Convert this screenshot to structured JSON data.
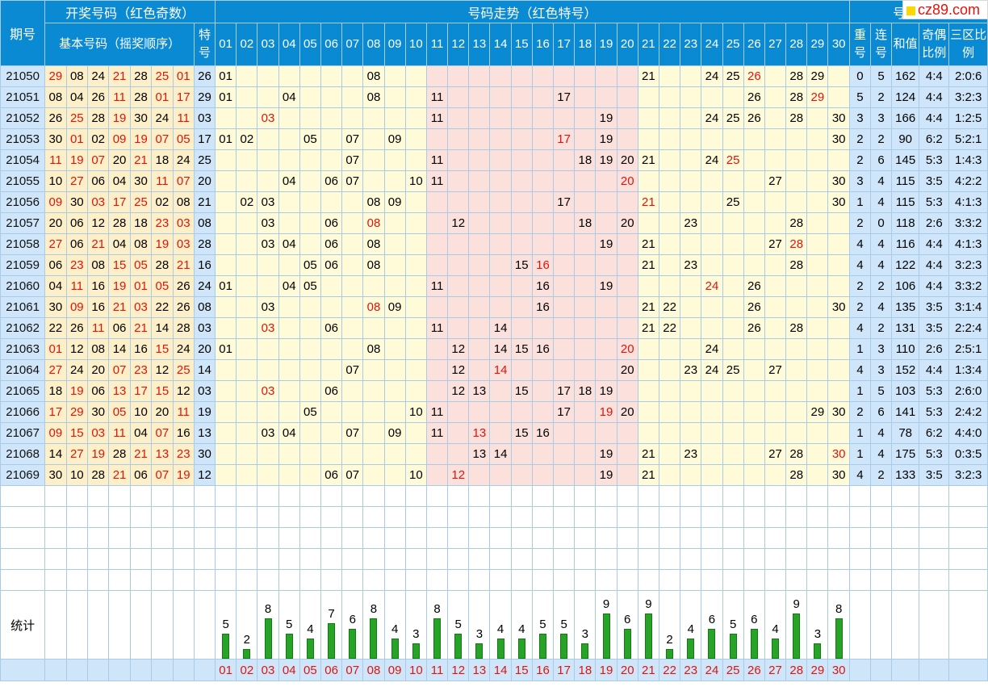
{
  "logo": "cz89.com",
  "headers": {
    "period": "期号",
    "open_group": "开奖号码（红色奇数）",
    "trend_group": "号码走势（红色特号）",
    "analysis_group": "号码分析",
    "basic": "基本号码（摇奖顺序）",
    "special": "特号",
    "repeat": "重号",
    "consecutive": "连号",
    "sum": "和值",
    "odd_even": "奇偶比例",
    "zone": "三区比例",
    "stat_label": "统计"
  },
  "trend_columns": [
    "01",
    "02",
    "03",
    "04",
    "05",
    "06",
    "07",
    "08",
    "09",
    "10",
    "11",
    "12",
    "13",
    "14",
    "15",
    "16",
    "17",
    "18",
    "19",
    "20",
    "21",
    "22",
    "23",
    "24",
    "25",
    "26",
    "27",
    "28",
    "29",
    "30"
  ],
  "pink_columns": [
    "11",
    "12",
    "13",
    "14",
    "15",
    "16",
    "17",
    "18",
    "19",
    "20"
  ],
  "rows": [
    {
      "period": "21050",
      "basic": [
        "29",
        "08",
        "24",
        "21",
        "28",
        "25",
        "01"
      ],
      "special": "26",
      "trend": [
        "01",
        "08",
        "21",
        "24",
        "25",
        "26",
        "28",
        "29"
      ],
      "repeat": "0",
      "consec": "5",
      "sum": "162",
      "oe": "4:4",
      "zone": "2:0:6"
    },
    {
      "period": "21051",
      "basic": [
        "08",
        "04",
        "26",
        "11",
        "28",
        "01",
        "17"
      ],
      "special": "29",
      "trend": [
        "01",
        "04",
        "08",
        "11",
        "17",
        "26",
        "28",
        "29"
      ],
      "repeat": "5",
      "consec": "2",
      "sum": "124",
      "oe": "4:4",
      "zone": "3:2:3"
    },
    {
      "period": "21052",
      "basic": [
        "26",
        "25",
        "28",
        "19",
        "30",
        "24",
        "11"
      ],
      "special": "03",
      "trend": [
        "03",
        "11",
        "19",
        "24",
        "25",
        "26",
        "28",
        "30"
      ],
      "repeat": "3",
      "consec": "3",
      "sum": "166",
      "oe": "4:4",
      "zone": "1:2:5"
    },
    {
      "period": "21053",
      "basic": [
        "30",
        "01",
        "02",
        "09",
        "19",
        "07",
        "05"
      ],
      "special": "17",
      "trend": [
        "01",
        "02",
        "05",
        "07",
        "09",
        "17",
        "19",
        "30"
      ],
      "repeat": "2",
      "consec": "2",
      "sum": "90",
      "oe": "6:2",
      "zone": "5:2:1"
    },
    {
      "period": "21054",
      "basic": [
        "11",
        "19",
        "07",
        "20",
        "21",
        "18",
        "24"
      ],
      "special": "25",
      "trend": [
        "07",
        "11",
        "18",
        "19",
        "20",
        "21",
        "24",
        "25"
      ],
      "repeat": "2",
      "consec": "6",
      "sum": "145",
      "oe": "5:3",
      "zone": "1:4:3"
    },
    {
      "period": "21055",
      "basic": [
        "10",
        "27",
        "06",
        "04",
        "30",
        "11",
        "07"
      ],
      "special": "20",
      "trend": [
        "04",
        "06",
        "07",
        "10",
        "11",
        "20",
        "27",
        "30"
      ],
      "repeat": "3",
      "consec": "4",
      "sum": "115",
      "oe": "3:5",
      "zone": "4:2:2"
    },
    {
      "period": "21056",
      "basic": [
        "09",
        "30",
        "03",
        "17",
        "25",
        "02",
        "08"
      ],
      "special": "21",
      "trend": [
        "02",
        "03",
        "08",
        "09",
        "17",
        "21",
        "25",
        "30"
      ],
      "repeat": "1",
      "consec": "4",
      "sum": "115",
      "oe": "5:3",
      "zone": "4:1:3"
    },
    {
      "period": "21057",
      "basic": [
        "20",
        "06",
        "12",
        "28",
        "18",
        "23",
        "03"
      ],
      "special": "08",
      "trend": [
        "03",
        "06",
        "08",
        "12",
        "18",
        "20",
        "23",
        "28"
      ],
      "repeat": "2",
      "consec": "0",
      "sum": "118",
      "oe": "2:6",
      "zone": "3:3:2"
    },
    {
      "period": "21058",
      "basic": [
        "27",
        "06",
        "21",
        "04",
        "08",
        "19",
        "03"
      ],
      "special": "28",
      "trend": [
        "03",
        "04",
        "06",
        "08",
        "19",
        "21",
        "27",
        "28"
      ],
      "repeat": "4",
      "consec": "4",
      "sum": "116",
      "oe": "4:4",
      "zone": "4:1:3"
    },
    {
      "period": "21059",
      "basic": [
        "06",
        "23",
        "08",
        "15",
        "05",
        "28",
        "21"
      ],
      "special": "16",
      "trend": [
        "05",
        "06",
        "08",
        "15",
        "16",
        "21",
        "23",
        "28"
      ],
      "repeat": "4",
      "consec": "4",
      "sum": "122",
      "oe": "4:4",
      "zone": "3:2:3"
    },
    {
      "period": "21060",
      "basic": [
        "04",
        "11",
        "16",
        "19",
        "01",
        "05",
        "26"
      ],
      "special": "24",
      "trend": [
        "01",
        "04",
        "05",
        "11",
        "16",
        "19",
        "24",
        "26"
      ],
      "repeat": "2",
      "consec": "2",
      "sum": "106",
      "oe": "4:4",
      "zone": "3:3:2"
    },
    {
      "period": "21061",
      "basic": [
        "30",
        "09",
        "16",
        "21",
        "03",
        "22",
        "26"
      ],
      "special": "08",
      "trend": [
        "03",
        "08",
        "09",
        "16",
        "21",
        "22",
        "26",
        "30"
      ],
      "repeat": "2",
      "consec": "4",
      "sum": "135",
      "oe": "3:5",
      "zone": "3:1:4"
    },
    {
      "period": "21062",
      "basic": [
        "22",
        "26",
        "11",
        "06",
        "21",
        "14",
        "28"
      ],
      "special": "03",
      "trend": [
        "03",
        "06",
        "11",
        "14",
        "21",
        "22",
        "26",
        "28"
      ],
      "repeat": "4",
      "consec": "2",
      "sum": "131",
      "oe": "3:5",
      "zone": "2:2:4"
    },
    {
      "period": "21063",
      "basic": [
        "01",
        "12",
        "08",
        "14",
        "16",
        "15",
        "24"
      ],
      "special": "20",
      "trend": [
        "01",
        "08",
        "12",
        "14",
        "15",
        "16",
        "20",
        "24"
      ],
      "repeat": "1",
      "consec": "3",
      "sum": "110",
      "oe": "2:6",
      "zone": "2:5:1"
    },
    {
      "period": "21064",
      "basic": [
        "27",
        "24",
        "20",
        "07",
        "23",
        "12",
        "25"
      ],
      "special": "14",
      "trend": [
        "07",
        "12",
        "14",
        "20",
        "23",
        "24",
        "25",
        "27"
      ],
      "repeat": "4",
      "consec": "3",
      "sum": "152",
      "oe": "4:4",
      "zone": "1:3:4"
    },
    {
      "period": "21065",
      "basic": [
        "18",
        "19",
        "06",
        "13",
        "17",
        "15",
        "12"
      ],
      "special": "03",
      "trend": [
        "03",
        "06",
        "12",
        "13",
        "15",
        "17",
        "18",
        "19"
      ],
      "repeat": "1",
      "consec": "5",
      "sum": "103",
      "oe": "5:3",
      "zone": "2:6:0"
    },
    {
      "period": "21066",
      "basic": [
        "17",
        "29",
        "30",
        "05",
        "10",
        "20",
        "11"
      ],
      "special": "19",
      "trend": [
        "05",
        "10",
        "11",
        "17",
        "19",
        "20",
        "29",
        "30"
      ],
      "repeat": "2",
      "consec": "6",
      "sum": "141",
      "oe": "5:3",
      "zone": "2:4:2"
    },
    {
      "period": "21067",
      "basic": [
        "09",
        "15",
        "03",
        "11",
        "04",
        "07",
        "16"
      ],
      "special": "13",
      "trend": [
        "03",
        "04",
        "07",
        "09",
        "11",
        "13",
        "15",
        "16"
      ],
      "repeat": "1",
      "consec": "4",
      "sum": "78",
      "oe": "6:2",
      "zone": "4:4:0"
    },
    {
      "period": "21068",
      "basic": [
        "14",
        "27",
        "19",
        "28",
        "21",
        "13",
        "23"
      ],
      "special": "30",
      "trend": [
        "13",
        "14",
        "19",
        "21",
        "23",
        "27",
        "28",
        "30"
      ],
      "repeat": "1",
      "consec": "4",
      "sum": "175",
      "oe": "5:3",
      "zone": "0:3:5"
    },
    {
      "period": "21069",
      "basic": [
        "30",
        "10",
        "28",
        "21",
        "06",
        "07",
        "19"
      ],
      "special": "12",
      "trend": [
        "06",
        "07",
        "10",
        "12",
        "19",
        "21",
        "28",
        "30"
      ],
      "repeat": "4",
      "consec": "2",
      "sum": "133",
      "oe": "3:5",
      "zone": "3:2:3"
    }
  ],
  "stats": [
    5,
    2,
    8,
    5,
    4,
    7,
    6,
    8,
    4,
    3,
    8,
    5,
    3,
    4,
    4,
    5,
    5,
    3,
    9,
    6,
    9,
    2,
    4,
    6,
    5,
    6,
    4,
    9,
    3,
    8
  ],
  "colors": {
    "header_bg": "#0a8ad2",
    "odd_red": "#e0140b",
    "bar_green": "#27a327"
  }
}
